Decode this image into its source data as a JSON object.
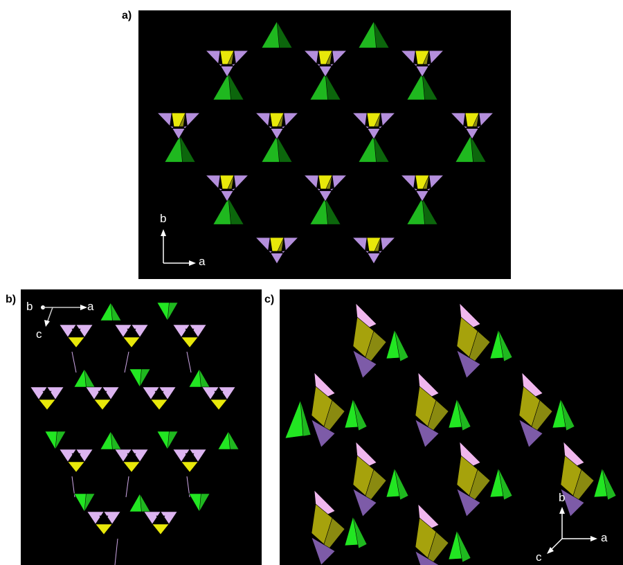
{
  "figure": {
    "panels": [
      {
        "label": "a)",
        "axes": [
          "b",
          "a"
        ]
      },
      {
        "label": "b)",
        "axes": [
          "b",
          "a",
          "c"
        ]
      },
      {
        "label": "c)",
        "axes": [
          "b",
          "a",
          "c"
        ]
      }
    ]
  },
  "colors": {
    "background": "#000000",
    "purple": "#b48fdc",
    "purple_dark": "#7d5ba8",
    "pink": "#f0b7ee",
    "yellow": "#e8e80a",
    "yellow_dark": "#8a8a10",
    "green": "#1fb81f",
    "green_dark": "#0c660c",
    "green_bright": "#22e622",
    "axis": "#ffffff"
  }
}
